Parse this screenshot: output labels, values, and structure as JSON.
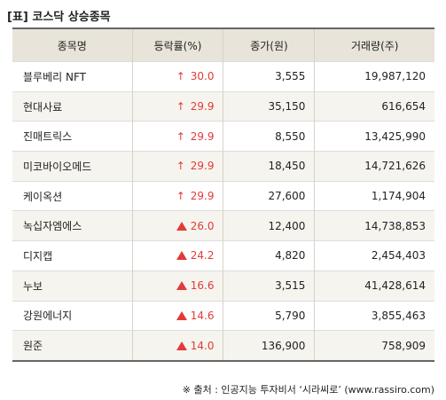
{
  "title": "[표] 코스닥 상승종목",
  "headers": [
    "종목명",
    "등락률(%)",
    "종가(원)",
    "거래량(주)"
  ],
  "colors": {
    "up": "#e23a3a",
    "header_bg": "#e8e4d9"
  },
  "rows": [
    {
      "name": "블루베리 NFT",
      "icon": "up-arrow-icon",
      "icon_glyph": "↑",
      "rate": "30.0",
      "price": "3,555",
      "volume": "19,987,120"
    },
    {
      "name": "현대사료",
      "icon": "up-arrow-icon",
      "icon_glyph": "↑",
      "rate": "29.9",
      "price": "35,150",
      "volume": "616,654"
    },
    {
      "name": "진매트릭스",
      "icon": "up-arrow-icon",
      "icon_glyph": "↑",
      "rate": "29.9",
      "price": "8,550",
      "volume": "13,425,990"
    },
    {
      "name": "미코바이오메드",
      "icon": "up-arrow-icon",
      "icon_glyph": "↑",
      "rate": "29.9",
      "price": "18,450",
      "volume": "14,721,626"
    },
    {
      "name": "케이옥션",
      "icon": "up-arrow-icon",
      "icon_glyph": "↑",
      "rate": "29.9",
      "price": "27,600",
      "volume": "1,174,904"
    },
    {
      "name": "녹십자엠에스",
      "icon": "up-triangle-icon",
      "icon_glyph": "",
      "rate": "26.0",
      "price": "12,400",
      "volume": "14,738,853"
    },
    {
      "name": "디지캡",
      "icon": "up-triangle-icon",
      "icon_glyph": "",
      "rate": "24.2",
      "price": "4,820",
      "volume": "2,454,403"
    },
    {
      "name": "누보",
      "icon": "up-triangle-icon",
      "icon_glyph": "",
      "rate": "16.6",
      "price": "3,515",
      "volume": "41,428,614"
    },
    {
      "name": "강원에너지",
      "icon": "up-triangle-icon",
      "icon_glyph": "",
      "rate": "14.6",
      "price": "5,790",
      "volume": "3,855,463"
    },
    {
      "name": "원준",
      "icon": "up-triangle-icon",
      "icon_glyph": "",
      "rate": "14.0",
      "price": "136,900",
      "volume": "758,909"
    }
  ],
  "source": "※ 출처 : 인공지능 투자비서 ‘시라씨로’ (www.rassiro.com)"
}
